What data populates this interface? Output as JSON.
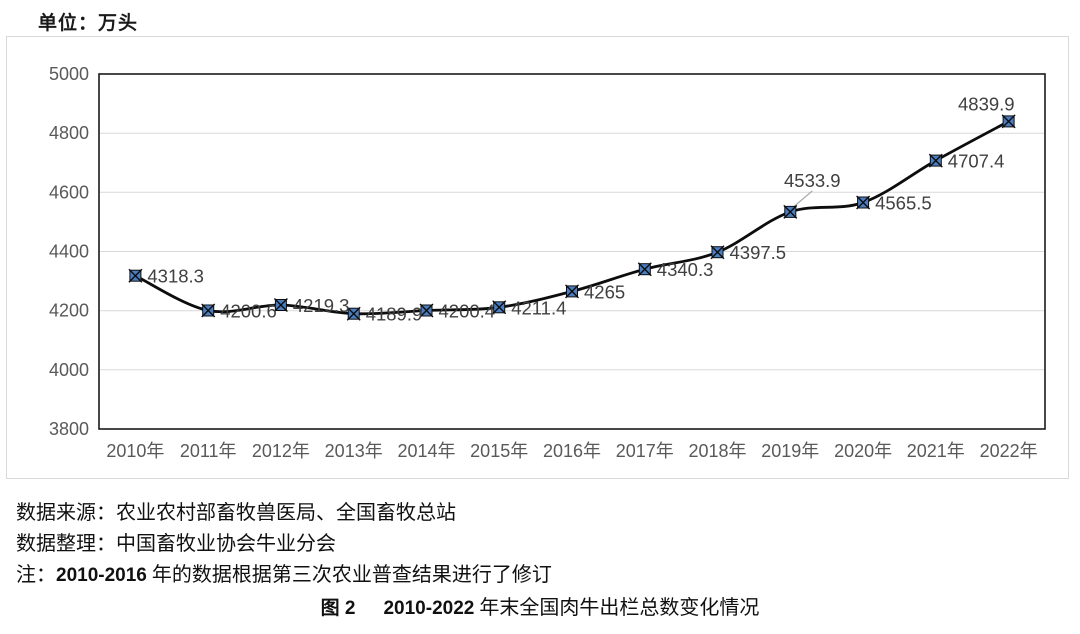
{
  "unit_label": "单位：万头",
  "chart_data": {
    "type": "line",
    "title": "",
    "xlabel": "",
    "ylabel": "万头",
    "x": [
      "2010年",
      "2011年",
      "2012年",
      "2013年",
      "2014年",
      "2015年",
      "2016年",
      "2017年",
      "2018年",
      "2019年",
      "2020年",
      "2021年",
      "2022年"
    ],
    "series": [
      {
        "name": "肉牛出栏总数",
        "values": [
          4318.3,
          4200.6,
          4219.3,
          4189.9,
          4200.4,
          4211.4,
          4265,
          4340.3,
          4397.5,
          4533.9,
          4565.5,
          4707.4,
          4839.9
        ]
      }
    ],
    "point_labels": [
      "4318.3",
      "4200.6",
      "4219.3",
      "4189.9",
      "4200.4",
      "4211.4",
      "4265",
      "4340.3",
      "4397.5",
      "4533.9",
      "4565.5",
      "4707.4",
      "4839.9"
    ],
    "label_placement": [
      "right",
      "right",
      "right",
      "right",
      "right",
      "right",
      "right",
      "right",
      "right",
      "above-leader",
      "right",
      "right",
      "above"
    ],
    "ylim": [
      3800,
      5000
    ],
    "yticks": [
      3800,
      4000,
      4200,
      4400,
      4600,
      4800,
      5000
    ],
    "grid": true,
    "legend": "none",
    "colors": {
      "line": "#0d0d0d",
      "marker_fill": "#4a7ec1",
      "marker_stroke": "#0d0d0d",
      "grid": "#d9d9d9",
      "plot_border": "#1a1a1a",
      "frame_border": "#d9d9d9",
      "axis_text": "#595959",
      "label_text": "#404040",
      "leader": "#a6a6a6"
    }
  },
  "footer": {
    "source": "数据来源：农业农村部畜牧兽医局、全国畜牧总站",
    "collation": "数据整理：中国畜牧业协会牛业分会",
    "note_prefix": "注：",
    "note_range": "2010-2016",
    "note_rest": " 年的数据根据第三次农业普查结果进行了修订",
    "caption_fig": "图 2",
    "caption_range": "2010-2022",
    "caption_rest": " 年末全国肉牛出栏总数变化情况"
  }
}
